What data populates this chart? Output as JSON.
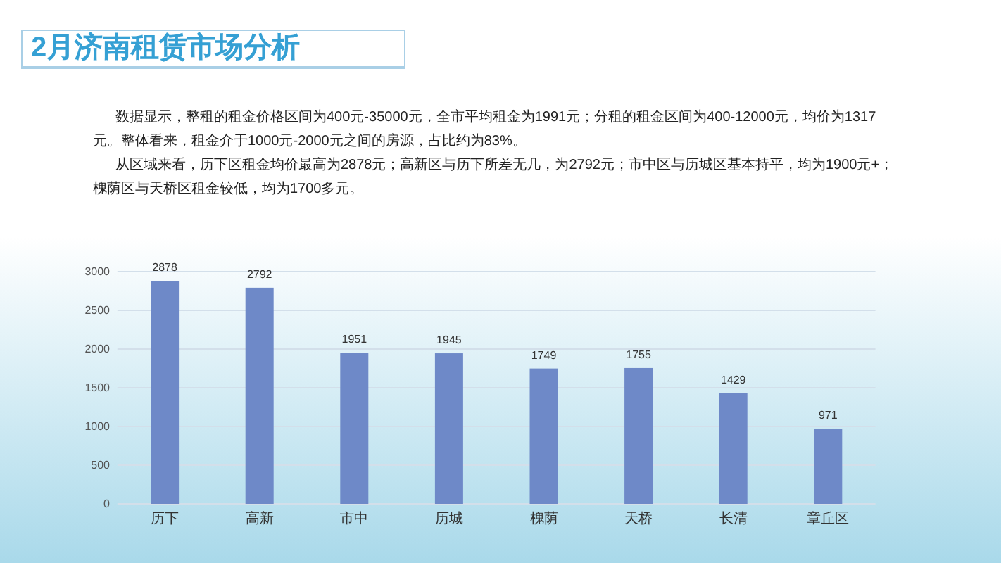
{
  "chart_data": {
    "type": "bar",
    "title": "2月济南租赁市场分析",
    "annotations": [
      "数据显示，整租的租金价格区间为400元-35000元，全市平均租金为1991元；分租的租金区间为400-12000元，均价为1317元。整体看来，租金介于1000元-2000元之间的房源，占比约为83%。",
      "从区域来看，历下区租金均价最高为2878元；高新区与历下所差无几，为2792元；市中区与历城区基本持平，均为1900元+；槐荫区与天桥区租金较低，均为1700多元。"
    ],
    "categories": [
      "历下",
      "高新",
      "市中",
      "历城",
      "槐荫",
      "天桥",
      "长清",
      "章丘区"
    ],
    "values": [
      2878,
      2792,
      1951,
      1945,
      1749,
      1755,
      1429,
      971
    ],
    "color": "#6e89c8",
    "ylim": [
      0,
      3000
    ],
    "yticks": [
      0,
      500,
      1000,
      1500,
      2000,
      2500,
      3000
    ],
    "grid": "y",
    "data_labels": true
  }
}
